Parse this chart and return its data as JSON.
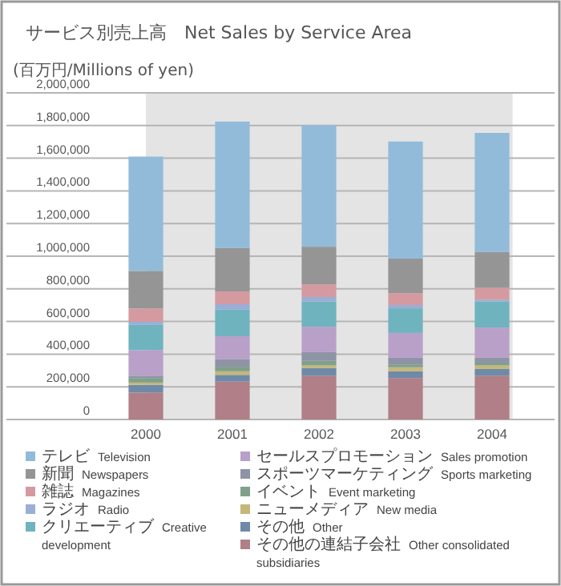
{
  "chart_data": {
    "type": "bar",
    "title": "サービス別売上高　Net Sales by Service Area",
    "ylabel": "(百万円/Millions of yen)",
    "categories": [
      "2000",
      "2001",
      "2002",
      "2003",
      "2004"
    ],
    "stacked": true,
    "series": [
      {
        "name": "その他の連結子会社　Other consolidated subsidiaries",
        "color": "#b07f87",
        "values": [
          165000,
          232000,
          268000,
          254000,
          268000
        ]
      },
      {
        "name": "その他　Other",
        "color": "#6f8aa8",
        "values": [
          47000,
          41000,
          47000,
          41000,
          41000
        ]
      },
      {
        "name": "ニューメディア　New media",
        "color": "#c5b77a",
        "values": [
          14000,
          22000,
          16000,
          25000,
          22000
        ]
      },
      {
        "name": "イベント　Event marketing",
        "color": "#7fa08a",
        "values": [
          28000,
          28000,
          28000,
          17000,
          17000
        ]
      },
      {
        "name": "スポーツマーケティング　Sports marketing",
        "color": "#8f93a6",
        "values": [
          14000,
          47000,
          55000,
          41000,
          30000
        ]
      },
      {
        "name": "セールスプロモーション　Sales promotion",
        "color": "#b8a0c8",
        "values": [
          157000,
          140000,
          154000,
          152000,
          185000
        ]
      },
      {
        "name": "クリエーティブ　Creative development",
        "color": "#6fb3bf",
        "values": [
          154000,
          163000,
          155000,
          151000,
          160000
        ]
      },
      {
        "name": "ラジオ　Radio",
        "color": "#9aaed6",
        "values": [
          20000,
          33000,
          27000,
          20000,
          11000
        ]
      },
      {
        "name": "雑誌　Magazines",
        "color": "#d49aa0",
        "values": [
          80000,
          78000,
          78000,
          72000,
          72000
        ]
      },
      {
        "name": "新聞　Newspapers",
        "color": "#959595",
        "values": [
          231000,
          266000,
          230000,
          212000,
          219000
        ]
      },
      {
        "name": "テレビ　Television",
        "color": "#92bbd9",
        "values": [
          700000,
          774000,
          744000,
          717000,
          730000
        ]
      }
    ],
    "ylim": [
      0,
      2000000
    ],
    "yticks": [
      0,
      {
        "value": 200000,
        "label": "200,000"
      },
      {
        "value": 400000,
        "label": "400,000"
      },
      {
        "value": 600000,
        "label": "600,000"
      },
      {
        "value": 800000,
        "label": "800,000"
      },
      {
        "value": 1000000,
        "label": "1,000,000"
      },
      {
        "value": 1200000,
        "label": "1,200,000"
      },
      {
        "value": 1400000,
        "label": "1,400,000"
      },
      {
        "value": 1600000,
        "label": "1,600,000"
      },
      {
        "value": 1800000,
        "label": "1,800,000"
      },
      {
        "value": 2000000,
        "label": "2,000,000"
      }
    ],
    "grid": "y",
    "legend": "bottom"
  }
}
